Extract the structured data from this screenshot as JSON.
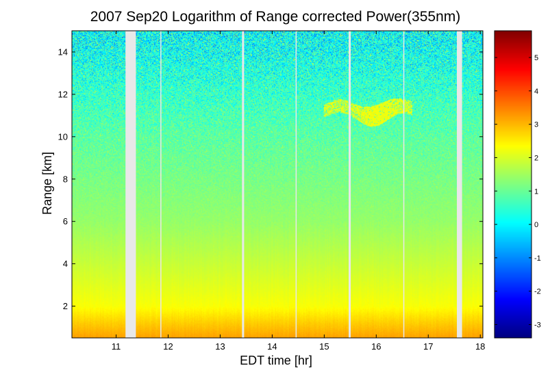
{
  "chart_data": {
    "type": "heatmap",
    "title": "2007 Sep20  Logarithm of Range corrected Power(355nm)",
    "xlabel": "EDT time [hr]",
    "ylabel": "Range [km]",
    "xlim": [
      10.15,
      18.05
    ],
    "ylim": [
      0.5,
      15.0
    ],
    "x_ticks": [
      11,
      12,
      13,
      14,
      15,
      16,
      17,
      18
    ],
    "y_ticks": [
      2,
      4,
      6,
      8,
      10,
      12,
      14
    ],
    "colorbar": {
      "colormap": "jet",
      "range": [
        -3.4,
        5.8
      ],
      "ticks": [
        -3,
        -2,
        -1,
        0,
        1,
        2,
        3,
        4,
        5
      ]
    },
    "data_gaps_hr": [
      [
        11.18,
        11.38
      ],
      [
        11.85,
        11.87
      ],
      [
        13.42,
        13.46
      ],
      [
        14.45,
        14.47
      ],
      [
        15.47,
        15.51
      ],
      [
        16.52,
        16.54
      ],
      [
        17.55,
        17.65
      ]
    ],
    "cloud_layer": {
      "time_hr": [
        15.0,
        16.7
      ],
      "range_km": [
        10.7,
        11.7
      ],
      "value": 2.3
    },
    "profile_description": {
      "surface_boundary_layer_km": [
        0.5,
        1.2
      ],
      "boundary_value": 3.2,
      "value_at_2km": 2.3,
      "value_at_6km": 1.4,
      "value_at_10km": 0.9,
      "value_at_14km": 0.2
    }
  }
}
